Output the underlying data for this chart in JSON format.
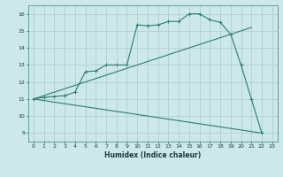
{
  "title": "",
  "xlabel": "Humidex (Indice chaleur)",
  "bg_color": "#cce8e8",
  "line_color": "#2d7d6e",
  "xlim": [
    -0.5,
    23.5
  ],
  "ylim": [
    8.5,
    16.5
  ],
  "xticks": [
    0,
    1,
    2,
    3,
    4,
    5,
    6,
    7,
    8,
    9,
    10,
    11,
    12,
    13,
    14,
    15,
    16,
    17,
    18,
    19,
    20,
    21,
    22,
    23
  ],
  "yticks": [
    9,
    10,
    11,
    12,
    13,
    14,
    15,
    16
  ],
  "grid_color": "#aacccc",
  "line_main": {
    "x": [
      0,
      1,
      2,
      3,
      4,
      5,
      6,
      7,
      8,
      9,
      10,
      11,
      12,
      13,
      14,
      15,
      16,
      17,
      18,
      19,
      20,
      21,
      22
    ],
    "y": [
      11.0,
      11.1,
      11.15,
      11.2,
      11.4,
      12.6,
      12.65,
      13.0,
      13.0,
      13.0,
      15.35,
      15.3,
      15.35,
      15.55,
      15.55,
      16.0,
      16.0,
      15.65,
      15.5,
      14.8,
      13.0,
      11.0,
      9.0
    ]
  },
  "line_upper": {
    "x": [
      0,
      21
    ],
    "y": [
      11.0,
      15.2
    ]
  },
  "line_lower": {
    "x": [
      0,
      22
    ],
    "y": [
      11.0,
      9.0
    ]
  }
}
